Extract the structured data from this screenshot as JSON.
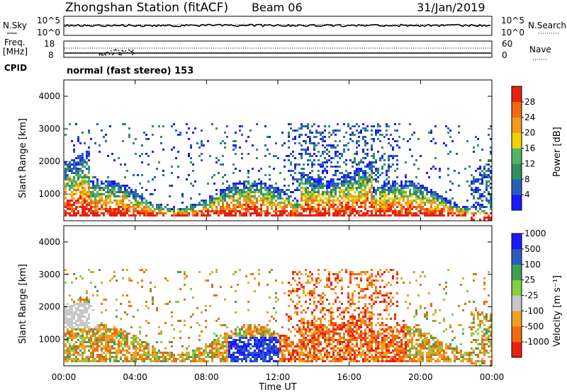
{
  "header": {
    "station": "Zhongshan Station (fitACF)",
    "beam": "Beam 06",
    "date": "31/Jan/2019"
  },
  "strip_labels": {
    "nsky": "N.Sky",
    "nsky_top": "10^5",
    "nsky_bottom": "10^0",
    "nsearch": "N.Search",
    "nsearch_top": "10^5",
    "nsearch_bottom": "10^0",
    "freq_line1": "Freq.",
    "freq_line2": "[MHz]",
    "freq_top": "18",
    "freq_bottom": "8",
    "nave": "Nave",
    "nave_top": "60",
    "nave_bottom": "0",
    "cpid": "CPID",
    "cpid_value": "normal (fast stereo) 153"
  },
  "x_axis": {
    "label": "Time UT",
    "ticks": [
      "00:00",
      "04:00",
      "08:00",
      "12:00",
      "16:00",
      "20:00",
      "00:00"
    ]
  },
  "colors": {
    "power": [
      "#1a1aff",
      "#2a5dc0",
      "#2f8f5f",
      "#52b267",
      "#f0d000",
      "#f29a1e",
      "#f06a10",
      "#e82010"
    ],
    "velocity": [
      "#e82010",
      "#f06a10",
      "#f0a020",
      "#c8c8c8",
      "#80d040",
      "#3fa04f",
      "#2a5dc0",
      "#1a1aff"
    ]
  },
  "chart_data": [
    {
      "type": "heatmap",
      "ylabel": "Slant Range [km]",
      "ylim": [
        180,
        4500
      ],
      "y_ticks": [
        1000,
        2000,
        3000,
        4000
      ],
      "colorbar": {
        "label": "Power [dB]",
        "ticks": [
          "4",
          "8",
          "12",
          "16",
          "20",
          "24",
          "28"
        ],
        "range": [
          0,
          32
        ]
      }
    },
    {
      "type": "heatmap",
      "ylabel": "Slant Range [km]",
      "ylim": [
        180,
        4500
      ],
      "y_ticks": [
        1000,
        2000,
        3000,
        4000
      ],
      "colorbar": {
        "label": "Velocity [m s⁻¹]",
        "ticks": [
          "1000",
          "500",
          "100",
          "25",
          "-25",
          "-100",
          "-500",
          "-1000"
        ]
      }
    }
  ]
}
